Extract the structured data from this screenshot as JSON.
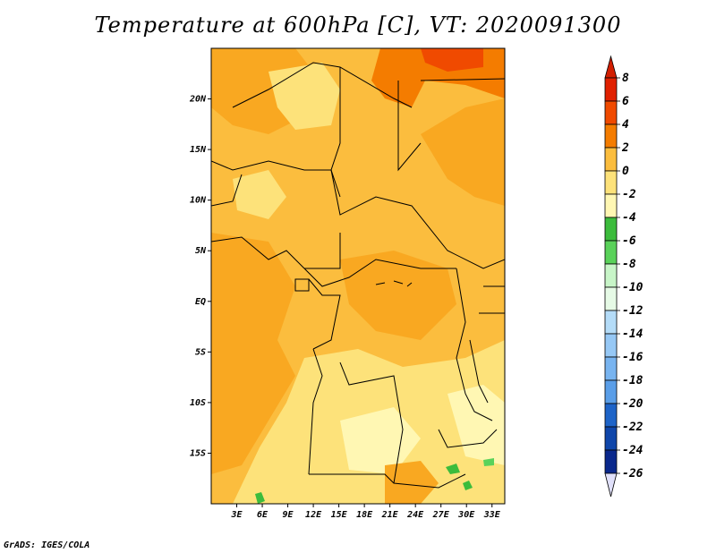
{
  "title": "Temperature at 600hPa [C], VT: 2020091300",
  "footer": "GrADS: IGES/COLA",
  "map": {
    "lon_range": [
      0,
      34.5
    ],
    "lat_range": [
      -20,
      25
    ],
    "x_ticks": [
      {
        "value": 3,
        "label": "3E"
      },
      {
        "value": 6,
        "label": "6E"
      },
      {
        "value": 9,
        "label": "9E"
      },
      {
        "value": 12,
        "label": "12E"
      },
      {
        "value": 15,
        "label": "15E"
      },
      {
        "value": 18,
        "label": "18E"
      },
      {
        "value": 21,
        "label": "21E"
      },
      {
        "value": 24,
        "label": "24E"
      },
      {
        "value": 27,
        "label": "27E"
      },
      {
        "value": 30,
        "label": "30E"
      },
      {
        "value": 33,
        "label": "33E"
      }
    ],
    "y_ticks": [
      {
        "value": 20,
        "label": "20N"
      },
      {
        "value": 15,
        "label": "15N"
      },
      {
        "value": 10,
        "label": "10N"
      },
      {
        "value": 5,
        "label": "5N"
      },
      {
        "value": 0,
        "label": "EQ"
      },
      {
        "value": -5,
        "label": "5S"
      },
      {
        "value": -10,
        "label": "10S"
      },
      {
        "value": -15,
        "label": "15S"
      }
    ]
  },
  "colorbar": {
    "levels": [
      "8",
      "6",
      "4",
      "2",
      "0",
      "-2",
      "-4",
      "-6",
      "-8",
      "-10",
      "-12",
      "-14",
      "-16",
      "-18",
      "-20",
      "-22",
      "-24",
      "-26"
    ],
    "colors": [
      "#e02000",
      "#f04a00",
      "#f47c00",
      "#f9a821",
      "#fbbd3e",
      "#fde27a",
      "#fff7b3",
      "#3cbc3c",
      "#5ad25a",
      "#8ee68e",
      "#c8f5c8",
      "#e6fae6",
      "#b4dcf8",
      "#96c8f5",
      "#78b4f0",
      "#5a9ee8",
      "#3c82dc",
      "#1e64c8",
      "#0f46aa",
      "#0a288c"
    ],
    "top_color": "#d21e00",
    "bottom_color": "#e0e0fa"
  }
}
